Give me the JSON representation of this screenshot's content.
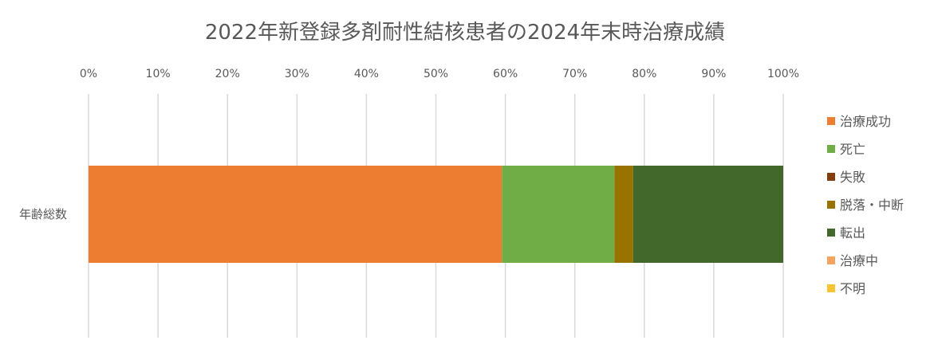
{
  "chart_data": {
    "type": "bar",
    "orientation": "horizontal",
    "stacked": "percent",
    "title": "2022年新登録多剤耐性結核患者の2024年末時治療成績",
    "categories": [
      "年齢総数"
    ],
    "x_ticks": [
      "0%",
      "10%",
      "20%",
      "30%",
      "40%",
      "50%",
      "60%",
      "70%",
      "80%",
      "90%",
      "100%"
    ],
    "xlim": [
      0,
      100
    ],
    "grid": "vertical",
    "legend_position": "right",
    "series": [
      {
        "name": "治療成功",
        "values": [
          59.5
        ],
        "color": "#ED7D31"
      },
      {
        "name": "死亡",
        "values": [
          16.2
        ],
        "color": "#70AD47"
      },
      {
        "name": "失敗",
        "values": [
          0
        ],
        "color": "#843C0C"
      },
      {
        "name": "脱落・中断",
        "values": [
          2.7
        ],
        "color": "#997300"
      },
      {
        "name": "転出",
        "values": [
          21.6
        ],
        "color": "#43682B"
      },
      {
        "name": "治療中",
        "values": [
          0
        ],
        "color": "#F4A460"
      },
      {
        "name": "不明",
        "values": [
          0
        ],
        "color": "#F5C431"
      }
    ]
  }
}
